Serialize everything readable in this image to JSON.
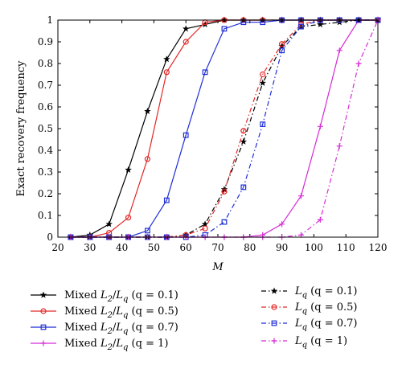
{
  "chart_data": {
    "type": "line",
    "xlabel": "M",
    "ylabel": "Exact recovery frequency",
    "xlim": [
      20,
      120
    ],
    "ylim": [
      0,
      1
    ],
    "x_ticks": [
      "20",
      "30",
      "40",
      "50",
      "60",
      "70",
      "80",
      "90",
      "100",
      "110",
      "120"
    ],
    "y_ticks": [
      "0",
      "0.1",
      "0.2",
      "0.3",
      "0.4",
      "0.5",
      "0.6",
      "0.7",
      "0.8",
      "0.9",
      "1"
    ],
    "grid": false,
    "legend_position": "below-plot",
    "x": [
      24,
      30,
      36,
      42,
      48,
      54,
      60,
      66,
      72,
      78,
      84,
      90,
      96,
      102,
      108,
      114,
      120
    ],
    "series": [
      {
        "name": "Mixed L2/Lq (q = 0.1)",
        "legend": {
          "pre": "Mixed ",
          "base1": "L",
          "sub1": "2",
          "mid": "/",
          "base2": "L",
          "sub2": "q",
          "post": " (q = 0.1)"
        },
        "color": "#000000",
        "dash": "solid",
        "marker": "star",
        "values": [
          0,
          0.01,
          0.06,
          0.31,
          0.58,
          0.82,
          0.96,
          0.98,
          1,
          1,
          1,
          1,
          1,
          1,
          1,
          1,
          1
        ]
      },
      {
        "name": "Mixed L2/Lq (q = 0.5)",
        "legend": {
          "pre": "Mixed ",
          "base1": "L",
          "sub1": "2",
          "mid": "/",
          "base2": "L",
          "sub2": "q",
          "post": " (q = 0.5)"
        },
        "color": "#e32727",
        "dash": "solid",
        "marker": "circle",
        "values": [
          0,
          0,
          0.02,
          0.09,
          0.36,
          0.76,
          0.9,
          0.99,
          1,
          1,
          1,
          1,
          1,
          1,
          1,
          1,
          1
        ]
      },
      {
        "name": "Mixed L2/Lq (q = 0.7)",
        "legend": {
          "pre": "Mixed ",
          "base1": "L",
          "sub1": "2",
          "mid": "/",
          "base2": "L",
          "sub2": "q",
          "post": " (q = 0.7)"
        },
        "color": "#1f2fd6",
        "dash": "solid",
        "marker": "square",
        "values": [
          0,
          0,
          0,
          0,
          0.03,
          0.17,
          0.47,
          0.76,
          0.96,
          0.99,
          0.99,
          1,
          1,
          1,
          1,
          1,
          1
        ]
      },
      {
        "name": "Mixed L2/Lq (q = 1)",
        "legend": {
          "pre": "Mixed ",
          "base1": "L",
          "sub1": "2",
          "mid": "/",
          "base2": "L",
          "sub2": "q",
          "post": " (q = 1)"
        },
        "color": "#d62bd6",
        "dash": "solid",
        "marker": "plus",
        "values": [
          0,
          0,
          0,
          0,
          0,
          0,
          0,
          0,
          0,
          0,
          0.01,
          0.06,
          0.19,
          0.51,
          0.86,
          1,
          1
        ]
      },
      {
        "name": "Lq (q = 0.1)",
        "legend": {
          "pre": "",
          "base1": "L",
          "sub1": "q",
          "mid": "",
          "base2": "",
          "sub2": "",
          "post": " (q = 0.1)"
        },
        "color": "#000000",
        "dash": "dashdot",
        "marker": "star",
        "values": [
          0,
          0,
          0,
          0,
          0,
          0,
          0.01,
          0.06,
          0.22,
          0.44,
          0.71,
          0.88,
          0.97,
          0.98,
          0.99,
          1,
          1
        ]
      },
      {
        "name": "Lq (q = 0.5)",
        "legend": {
          "pre": "",
          "base1": "L",
          "sub1": "q",
          "mid": "",
          "base2": "",
          "sub2": "",
          "post": " (q = 0.5)"
        },
        "color": "#e32727",
        "dash": "dashdot",
        "marker": "circle",
        "values": [
          0,
          0,
          0,
          0,
          0,
          0,
          0.01,
          0.04,
          0.21,
          0.49,
          0.75,
          0.89,
          0.98,
          1,
          1,
          1,
          1
        ]
      },
      {
        "name": "Lq (q = 0.7)",
        "legend": {
          "pre": "",
          "base1": "L",
          "sub1": "q",
          "mid": "",
          "base2": "",
          "sub2": "",
          "post": " (q = 0.7)"
        },
        "color": "#1f2fd6",
        "dash": "dashdot",
        "marker": "square",
        "values": [
          0,
          0,
          0,
          0,
          0,
          0,
          0,
          0.01,
          0.07,
          0.23,
          0.52,
          0.86,
          0.97,
          1,
          1,
          1,
          1
        ]
      },
      {
        "name": "Lq (q = 1)",
        "legend": {
          "pre": "",
          "base1": "L",
          "sub1": "q",
          "mid": "",
          "base2": "",
          "sub2": "",
          "post": " (q = 1)"
        },
        "color": "#d62bd6",
        "dash": "dashdot",
        "marker": "plus",
        "values": [
          0,
          0,
          0,
          0,
          0,
          0,
          0,
          0,
          0,
          0,
          0,
          0,
          0.01,
          0.08,
          0.42,
          0.8,
          1
        ]
      }
    ]
  }
}
